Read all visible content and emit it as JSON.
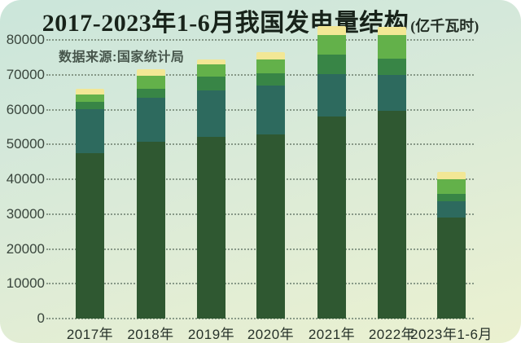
{
  "title": {
    "text": "2017-2023年1-6月我国发电量结构",
    "unit": "(亿千瓦时)"
  },
  "source": "数据来源:国家统计局",
  "chart_data": {
    "type": "bar",
    "stacked": true,
    "title": "2017-2023年1-6月我国发电量结构(亿千瓦时)",
    "source_note": "数据来源:国家统计局",
    "categories": [
      "2017年",
      "2018年",
      "2019年",
      "2020年",
      "2021年",
      "2022年",
      "2023年1-6月"
    ],
    "series": [
      {
        "name": "segment-dark-green-bottom",
        "color": "#2f5831",
        "values": [
          47500,
          50800,
          52200,
          52900,
          58000,
          59600,
          29100
        ]
      },
      {
        "name": "segment-teal",
        "color": "#2d6a5e",
        "values": [
          12700,
          12700,
          13300,
          14100,
          12100,
          10300,
          4700
        ]
      },
      {
        "name": "segment-medium-green",
        "color": "#388546",
        "values": [
          2100,
          2500,
          3900,
          3500,
          5600,
          4700,
          2000
        ]
      },
      {
        "name": "segment-light-green",
        "color": "#63b14a",
        "values": [
          2100,
          3800,
          3700,
          3900,
          5700,
          6900,
          4300
        ]
      },
      {
        "name": "segment-yellow-top",
        "color": "#f2e795",
        "values": [
          1600,
          1800,
          1400,
          2100,
          2600,
          2300,
          1900
        ]
      }
    ],
    "totals": [
      66000,
      71600,
      74500,
      76500,
      84000,
      83800,
      42000
    ],
    "yticks": [
      0,
      10000,
      20000,
      30000,
      40000,
      50000,
      60000,
      70000,
      80000
    ],
    "ylim": [
      0,
      80000
    ],
    "xlabel": "",
    "ylabel": "",
    "grid": "horizontal-dotted",
    "legend_position": "none",
    "background_gradient": [
      "#cbe6da",
      "#dfecd6",
      "#ebf1d0"
    ]
  }
}
